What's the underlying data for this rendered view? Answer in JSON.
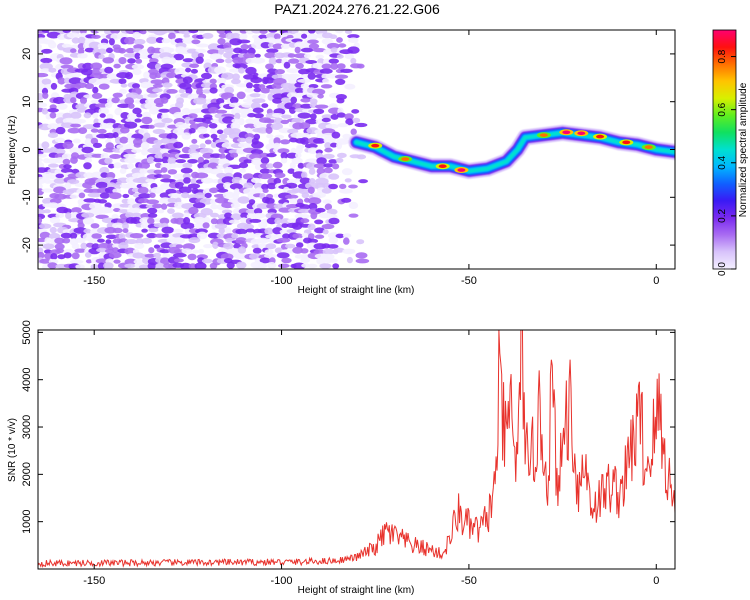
{
  "page": {
    "title": "PAZ1.2024.276.21.22.G06"
  },
  "colors": {
    "snr_line": "#e8332d",
    "colormap": [
      "#f4f0ff",
      "#d8c3fb",
      "#a96cf2",
      "#7a2af0",
      "#3a1af5",
      "#1060ff",
      "#00b8ff",
      "#00e0d0",
      "#10e060",
      "#60ee20",
      "#d8f000",
      "#ffc400",
      "#ff7000",
      "#ff1010",
      "#ff0070"
    ]
  },
  "chart_data": [
    {
      "type": "heatmap",
      "title": "PAZ1.2024.276.21.22.G06",
      "xlabel": "Height of straight line (km)",
      "ylabel": "Frequency (Hz)",
      "xlim": [
        -165,
        5
      ],
      "ylim": [
        -25,
        25
      ],
      "x_ticks": [
        -150,
        -100,
        -50,
        0
      ],
      "y_ticks": [
        -20,
        -10,
        0,
        10,
        20
      ],
      "x_tick_labels": [
        "-150",
        "-100",
        "-50",
        "0"
      ],
      "y_tick_labels": [
        "-20",
        "-10",
        "0",
        "10",
        "20"
      ],
      "colorbar": {
        "label": "Normalized spectral amplitude",
        "range": [
          0,
          0.9
        ],
        "ticks": [
          0,
          0.2,
          0.4,
          0.6,
          0.8
        ],
        "tick_labels": [
          "0.0",
          "0.2",
          "0.4",
          "0.6",
          "0.8"
        ]
      },
      "noise_region": {
        "x_range": [
          -165,
          -80
        ],
        "y_range": [
          -25,
          25
        ],
        "amplitude_range": [
          0.02,
          0.25
        ]
      },
      "signal_track": [
        {
          "x": -80,
          "y": 1.5
        },
        {
          "x": -75,
          "y": 0.5
        },
        {
          "x": -70,
          "y": -1.5
        },
        {
          "x": -65,
          "y": -2.5
        },
        {
          "x": -60,
          "y": -3.5
        },
        {
          "x": -55,
          "y": -3.5
        },
        {
          "x": -50,
          "y": -4.5
        },
        {
          "x": -45,
          "y": -4
        },
        {
          "x": -40,
          "y": -2.5
        },
        {
          "x": -37,
          "y": 0
        },
        {
          "x": -35,
          "y": 2.5
        },
        {
          "x": -30,
          "y": 3
        },
        {
          "x": -25,
          "y": 3.5
        },
        {
          "x": -20,
          "y": 3
        },
        {
          "x": -15,
          "y": 2.5
        },
        {
          "x": -10,
          "y": 1.5
        },
        {
          "x": -5,
          "y": 1
        },
        {
          "x": 0,
          "y": 0
        },
        {
          "x": 5,
          "y": -0.5
        }
      ],
      "peaks": [
        {
          "x": -75,
          "y": 0.8,
          "amplitude": 0.85
        },
        {
          "x": -67,
          "y": -2,
          "amplitude": 0.8
        },
        {
          "x": -57,
          "y": -3.5,
          "amplitude": 0.85
        },
        {
          "x": -52,
          "y": -4.3,
          "amplitude": 0.9
        },
        {
          "x": -30,
          "y": 3,
          "amplitude": 0.8
        },
        {
          "x": -24,
          "y": 3.6,
          "amplitude": 0.9
        },
        {
          "x": -20,
          "y": 3.4,
          "amplitude": 0.9
        },
        {
          "x": -15,
          "y": 2.7,
          "amplitude": 0.85
        },
        {
          "x": -8,
          "y": 1.5,
          "amplitude": 0.85
        },
        {
          "x": -2,
          "y": 0.5,
          "amplitude": 0.8
        }
      ]
    },
    {
      "type": "line",
      "xlabel": "Height of straight line (km)",
      "ylabel": "SNR (10 * v/v)",
      "xlim": [
        -165,
        5
      ],
      "ylim": [
        0,
        5050
      ],
      "x_ticks": [
        -150,
        -100,
        -50,
        0
      ],
      "y_ticks": [
        1000,
        2000,
        3000,
        4000,
        5000
      ],
      "x_tick_labels": [
        "-150",
        "-100",
        "-50",
        "0"
      ],
      "y_tick_labels": [
        "1000",
        "2000",
        "3000",
        "4000",
        "5000"
      ],
      "series": [
        {
          "values": [
            {
              "x": -165,
              "y": 120
            },
            {
              "x": -140,
              "y": 130
            },
            {
              "x": -115,
              "y": 140
            },
            {
              "x": -95,
              "y": 150
            },
            {
              "x": -85,
              "y": 180
            },
            {
              "x": -80,
              "y": 250
            },
            {
              "x": -75,
              "y": 450
            },
            {
              "x": -72,
              "y": 800
            },
            {
              "x": -70,
              "y": 700
            },
            {
              "x": -65,
              "y": 500
            },
            {
              "x": -60,
              "y": 400
            },
            {
              "x": -57,
              "y": 300
            },
            {
              "x": -55,
              "y": 650
            },
            {
              "x": -53,
              "y": 1200
            },
            {
              "x": -50,
              "y": 900
            },
            {
              "x": -47,
              "y": 800
            },
            {
              "x": -45,
              "y": 1100
            },
            {
              "x": -43,
              "y": 1700
            },
            {
              "x": -42,
              "y": 3750
            },
            {
              "x": -40,
              "y": 2500
            },
            {
              "x": -39,
              "y": 3600
            },
            {
              "x": -37,
              "y": 2000
            },
            {
              "x": -36,
              "y": 5000
            },
            {
              "x": -34,
              "y": 1500
            },
            {
              "x": -33,
              "y": 2500
            },
            {
              "x": -31,
              "y": 3200
            },
            {
              "x": -29,
              "y": 1800
            },
            {
              "x": -28,
              "y": 3800
            },
            {
              "x": -26,
              "y": 1500
            },
            {
              "x": -25,
              "y": 2800
            },
            {
              "x": -23,
              "y": 3600
            },
            {
              "x": -21,
              "y": 1700
            },
            {
              "x": -19,
              "y": 2200
            },
            {
              "x": -17,
              "y": 1300
            },
            {
              "x": -15,
              "y": 1500
            },
            {
              "x": -12,
              "y": 1800
            },
            {
              "x": -10,
              "y": 1600
            },
            {
              "x": -8,
              "y": 2000
            },
            {
              "x": -6,
              "y": 2800
            },
            {
              "x": -4,
              "y": 3200
            },
            {
              "x": -3,
              "y": 2000
            },
            {
              "x": -1,
              "y": 2700
            },
            {
              "x": 1,
              "y": 3400
            },
            {
              "x": 2,
              "y": 2400
            },
            {
              "x": 4,
              "y": 1700
            },
            {
              "x": 5,
              "y": 1200
            }
          ]
        }
      ]
    }
  ]
}
